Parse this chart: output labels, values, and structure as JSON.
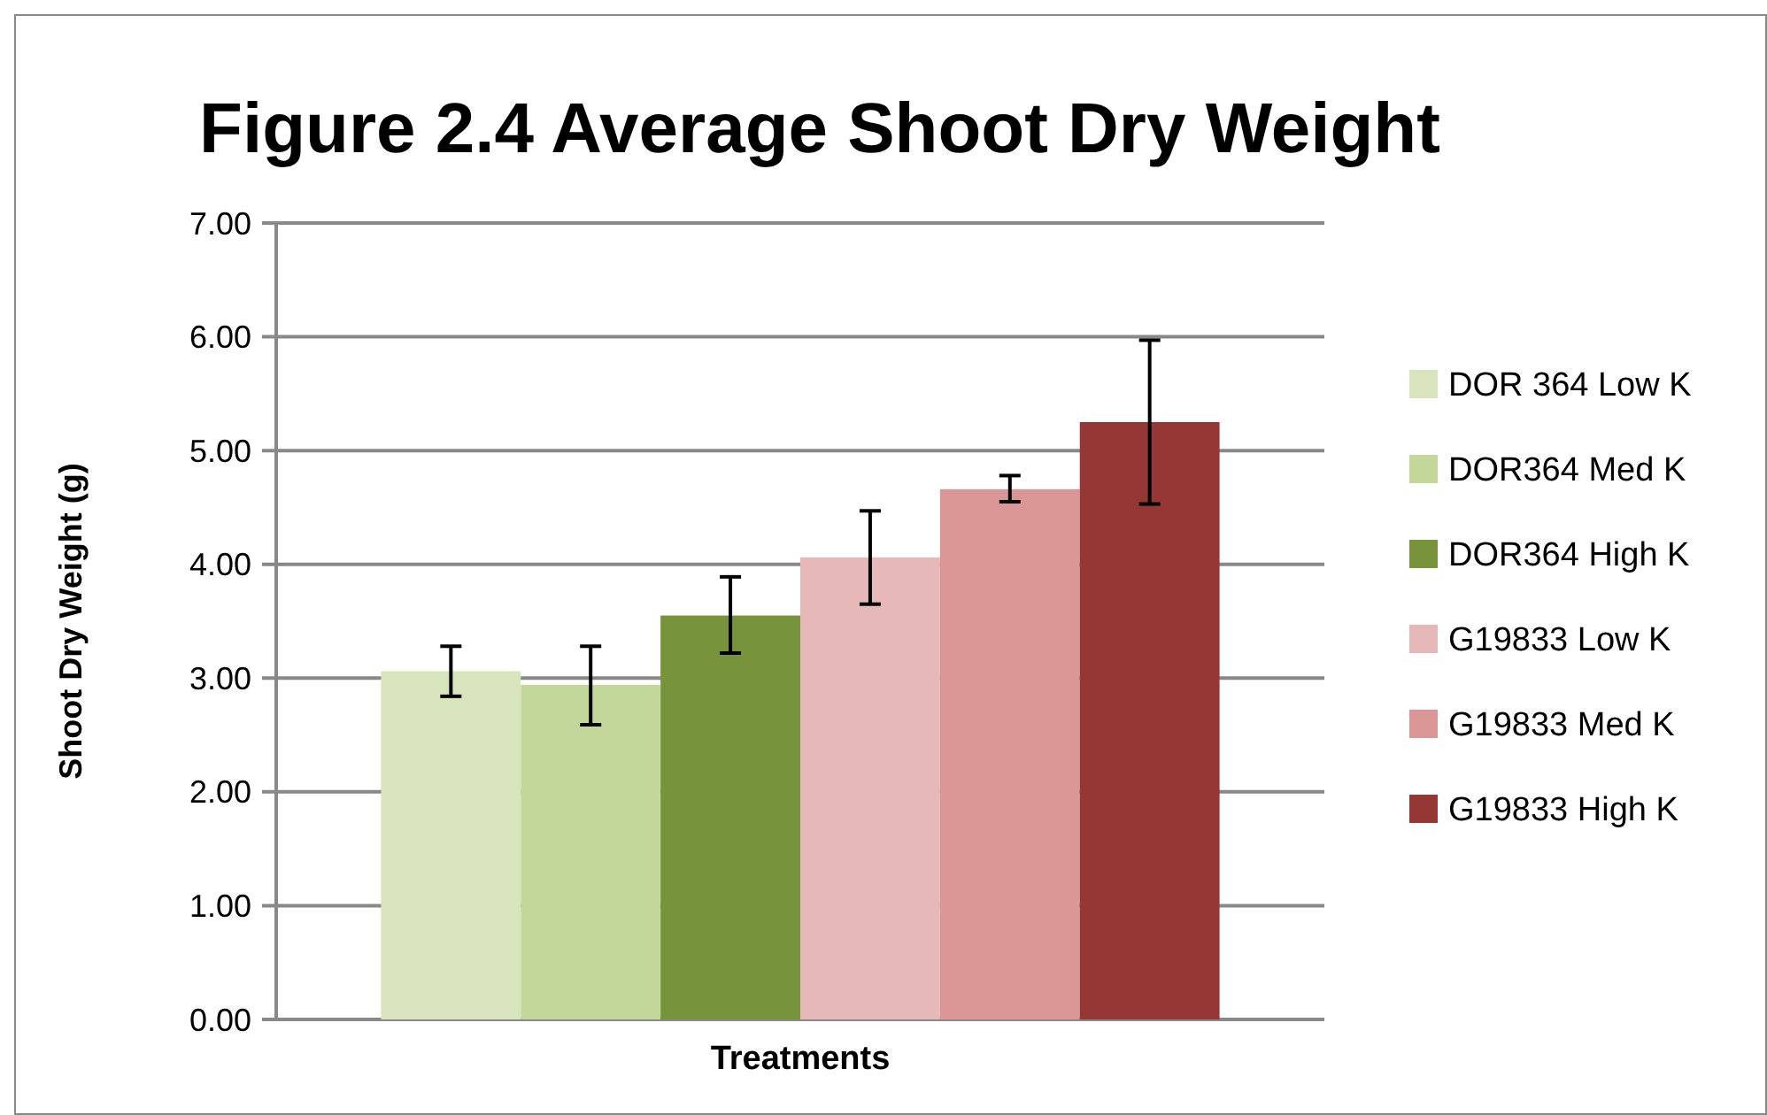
{
  "chart_data": {
    "type": "bar",
    "title": "Figure 2.4 Average Shoot Dry Weight",
    "xlabel": "Treatments",
    "ylabel": "Shoot Dry Weight (g)",
    "categories": [
      null
    ],
    "series": [
      {
        "name": "DOR 364 Low K",
        "color": "#d8e4bc",
        "values": [
          3.06
        ],
        "errors": [
          [
            2.84,
            3.28
          ]
        ]
      },
      {
        "name": "DOR364 Med K",
        "color": "#c4d79b",
        "values": [
          2.94
        ],
        "errors": [
          [
            2.59,
            3.28
          ]
        ]
      },
      {
        "name": "DOR364 High K",
        "color": "#77933c",
        "values": [
          3.55
        ],
        "errors": [
          [
            3.22,
            3.89
          ]
        ]
      },
      {
        "name": "G19833 Low K",
        "color": "#e6b8b7",
        "values": [
          4.06
        ],
        "errors": [
          [
            3.65,
            4.47
          ]
        ]
      },
      {
        "name": "G19833 Med K",
        "color": "#da9694",
        "values": [
          4.66
        ],
        "errors": [
          [
            4.55,
            4.78
          ]
        ]
      },
      {
        "name": "G19833 High K",
        "color": "#953735",
        "values": [
          5.25
        ],
        "errors": [
          [
            4.53,
            5.97
          ]
        ]
      }
    ],
    "ylim": [
      0,
      7
    ],
    "yticks": [
      {
        "value": 0,
        "label": "0.00"
      },
      {
        "value": 1,
        "label": "1.00"
      },
      {
        "value": 2,
        "label": "2.00"
      },
      {
        "value": 3,
        "label": "3.00"
      },
      {
        "value": 4,
        "label": "4.00"
      },
      {
        "value": 5,
        "label": "5.00"
      },
      {
        "value": 6,
        "label": "6.00"
      },
      {
        "value": 7,
        "label": "7.00"
      }
    ],
    "grid": "y",
    "legend": "right"
  }
}
